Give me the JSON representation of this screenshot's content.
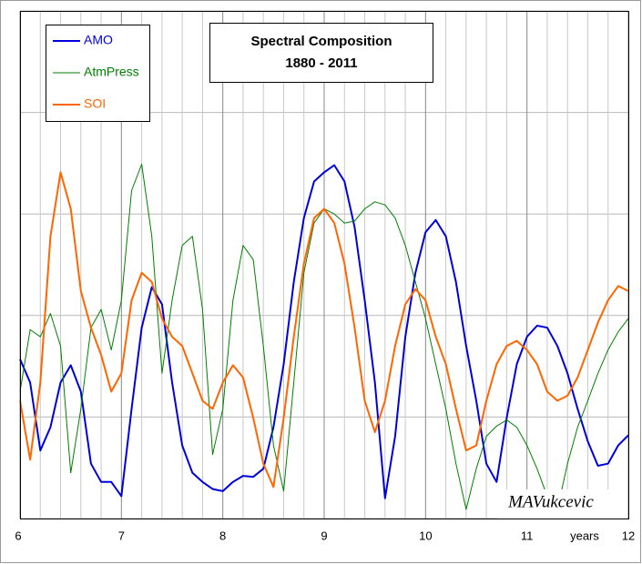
{
  "chart_data": {
    "type": "line",
    "title": "Spectral Composition",
    "subtitle": "1880 - 2011",
    "x_label": "years",
    "annotation": "MAVukcevic",
    "x": [
      6,
      6.1,
      6.2,
      6.3,
      6.4,
      6.5,
      6.6,
      6.7,
      6.8,
      6.9,
      7,
      7.1,
      7.2,
      7.3,
      7.4,
      7.5,
      7.6,
      7.7,
      7.8,
      7.9,
      8,
      8.1,
      8.2,
      8.3,
      8.4,
      8.5,
      8.6,
      8.7,
      8.8,
      8.9,
      9,
      9.1,
      9.2,
      9.3,
      9.4,
      9.5,
      9.6,
      9.7,
      9.8,
      9.9,
      10,
      10.1,
      10.2,
      10.3,
      10.4,
      10.5,
      10.6,
      10.7,
      10.8,
      10.9,
      11,
      11.1,
      11.2,
      11.3,
      11.4,
      11.5,
      11.6,
      11.7,
      11.8,
      11.9,
      12
    ],
    "series": [
      {
        "name": "AMO",
        "color": "#0000dd",
        "width": 2,
        "values": [
          1.57,
          1.34,
          0.67,
          0.9,
          1.34,
          1.51,
          1.25,
          0.54,
          0.36,
          0.36,
          0.22,
          1.08,
          1.88,
          2.28,
          2.11,
          1.34,
          0.72,
          0.45,
          0.36,
          0.29,
          0.27,
          0.36,
          0.42,
          0.41,
          0.49,
          0.9,
          1.52,
          2.33,
          2.96,
          3.32,
          3.41,
          3.48,
          3.32,
          2.87,
          2.15,
          1.34,
          0.2,
          0.81,
          1.79,
          2.42,
          2.82,
          2.94,
          2.78,
          2.33,
          1.7,
          1.16,
          0.54,
          0.36,
          0.99,
          1.52,
          1.79,
          1.9,
          1.88,
          1.7,
          1.43,
          1.08,
          0.76,
          0.52,
          0.54,
          0.72,
          0.82
        ]
      },
      {
        "name": "AtmPress",
        "color": "#008000",
        "width": 1,
        "values": [
          1.25,
          1.86,
          1.79,
          2.02,
          1.7,
          0.45,
          1.08,
          1.88,
          2.06,
          1.66,
          2.15,
          3.23,
          3.49,
          2.78,
          1.43,
          2.15,
          2.69,
          2.78,
          2.06,
          0.63,
          1.08,
          2.15,
          2.69,
          2.55,
          1.7,
          0.72,
          0.27,
          1.34,
          2.42,
          2.91,
          3.05,
          3.0,
          2.91,
          2.93,
          3.05,
          3.12,
          3.09,
          2.96,
          2.69,
          2.33,
          1.97,
          1.52,
          1.08,
          0.54,
          0.09,
          0.49,
          0.81,
          0.91,
          0.97,
          0.9,
          0.72,
          0.49,
          0.22,
          0.09,
          0.54,
          0.9,
          1.16,
          1.43,
          1.66,
          1.84,
          1.97
        ]
      },
      {
        "name": "SOI",
        "color": "#ff6600",
        "width": 2,
        "values": [
          1.16,
          0.58,
          1.34,
          2.78,
          3.41,
          3.05,
          2.24,
          1.88,
          1.61,
          1.25,
          1.43,
          2.15,
          2.42,
          2.33,
          1.97,
          1.79,
          1.7,
          1.43,
          1.16,
          1.08,
          1.34,
          1.51,
          1.39,
          0.99,
          0.54,
          0.31,
          0.99,
          1.79,
          2.51,
          2.96,
          3.05,
          2.91,
          2.51,
          1.88,
          1.16,
          0.85,
          1.16,
          1.7,
          2.11,
          2.26,
          2.15,
          1.79,
          1.52,
          1.08,
          0.67,
          0.72,
          1.16,
          1.52,
          1.7,
          1.75,
          1.66,
          1.52,
          1.25,
          1.16,
          1.21,
          1.39,
          1.66,
          1.93,
          2.15,
          2.29,
          2.24
        ]
      }
    ],
    "xlim": [
      6,
      12
    ],
    "xticks": [
      6,
      7,
      8,
      9,
      10,
      11,
      12
    ],
    "ylim": [
      0,
      5
    ],
    "grid": true
  }
}
